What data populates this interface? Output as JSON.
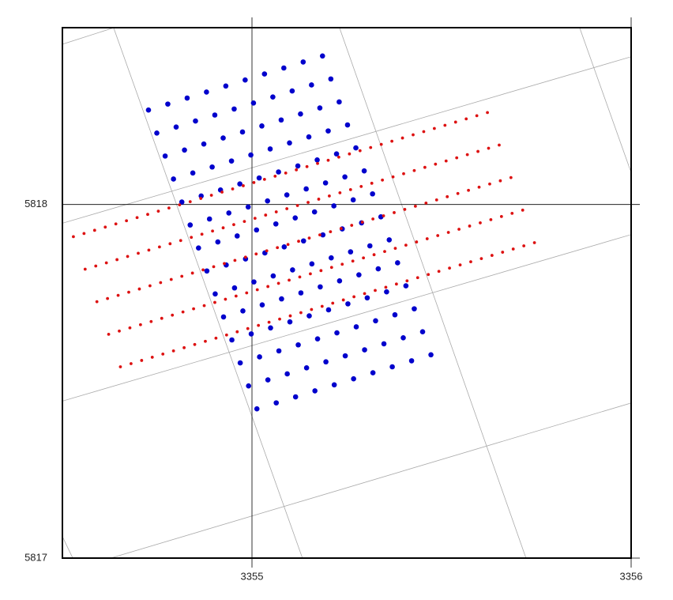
{
  "chart_data": {
    "type": "scatter",
    "xlim": [
      3354.5,
      3356
    ],
    "ylim": [
      5817,
      5818.5
    ],
    "xticks": [
      3355,
      3356
    ],
    "yticks": [
      5817,
      5818
    ],
    "grid": true,
    "series": [
      {
        "color": "#0000cc",
        "x": [
          3354.727,
          3354.778,
          3354.829,
          3354.88,
          3354.931,
          3354.982,
          3355.033,
          3355.084,
          3355.135,
          3355.186,
          3354.749,
          3354.8,
          3354.851,
          3354.902,
          3354.953,
          3355.004,
          3355.055,
          3355.106,
          3355.157,
          3355.208,
          3354.771,
          3354.822,
          3354.873,
          3354.924,
          3354.975,
          3355.026,
          3355.077,
          3355.128,
          3355.179,
          3355.23,
          3354.793,
          3354.844,
          3354.895,
          3354.946,
          3354.997,
          3355.048,
          3355.099,
          3355.15,
          3355.201,
          3355.252,
          3354.815,
          3354.866,
          3354.917,
          3354.968,
          3355.019,
          3355.07,
          3355.121,
          3355.172,
          3355.223,
          3355.274,
          3354.837,
          3354.888,
          3354.939,
          3354.99,
          3355.041,
          3355.092,
          3355.143,
          3355.194,
          3355.245,
          3355.296,
          3354.859,
          3354.91,
          3354.961,
          3355.012,
          3355.063,
          3355.114,
          3355.165,
          3355.216,
          3355.267,
          3355.318,
          3354.881,
          3354.932,
          3354.983,
          3355.034,
          3355.085,
          3355.136,
          3355.187,
          3355.238,
          3355.289,
          3355.34,
          3354.903,
          3354.954,
          3355.005,
          3355.056,
          3355.107,
          3355.158,
          3355.209,
          3355.26,
          3355.311,
          3355.362,
          3354.925,
          3354.976,
          3355.027,
          3355.078,
          3355.129,
          3355.18,
          3355.231,
          3355.282,
          3355.333,
          3355.384,
          3354.947,
          3354.998,
          3355.049,
          3355.1,
          3355.151,
          3355.202,
          3355.253,
          3355.304,
          3355.355,
          3355.406,
          3354.969,
          3355.02,
          3355.071,
          3355.122,
          3355.173,
          3355.224,
          3355.275,
          3355.326,
          3355.377,
          3355.428,
          3354.991,
          3355.042,
          3355.093,
          3355.144,
          3355.195,
          3355.246,
          3355.297,
          3355.348,
          3355.399,
          3355.45,
          3355.013,
          3355.064,
          3355.115,
          3355.166,
          3355.217,
          3355.268,
          3355.319,
          3355.37,
          3355.421,
          3355.472
        ],
        "y": [
          5818.267,
          5818.284,
          5818.301,
          5818.318,
          5818.335,
          5818.352,
          5818.369,
          5818.386,
          5818.403,
          5818.42,
          5818.202,
          5818.219,
          5818.236,
          5818.253,
          5818.27,
          5818.287,
          5818.304,
          5818.321,
          5818.338,
          5818.355,
          5818.137,
          5818.154,
          5818.171,
          5818.188,
          5818.205,
          5818.222,
          5818.239,
          5818.256,
          5818.273,
          5818.29,
          5818.072,
          5818.089,
          5818.106,
          5818.123,
          5818.14,
          5818.157,
          5818.174,
          5818.191,
          5818.208,
          5818.225,
          5818.007,
          5818.024,
          5818.041,
          5818.058,
          5818.075,
          5818.092,
          5818.109,
          5818.126,
          5818.143,
          5818.16,
          5817.942,
          5817.959,
          5817.976,
          5817.993,
          5818.01,
          5818.027,
          5818.044,
          5818.061,
          5818.078,
          5818.095,
          5817.877,
          5817.894,
          5817.911,
          5817.928,
          5817.945,
          5817.962,
          5817.979,
          5817.996,
          5818.013,
          5818.03,
          5817.812,
          5817.829,
          5817.846,
          5817.863,
          5817.88,
          5817.897,
          5817.914,
          5817.931,
          5817.948,
          5817.965,
          5817.747,
          5817.764,
          5817.781,
          5817.798,
          5817.815,
          5817.832,
          5817.849,
          5817.866,
          5817.883,
          5817.9,
          5817.682,
          5817.699,
          5817.716,
          5817.733,
          5817.75,
          5817.767,
          5817.784,
          5817.801,
          5817.818,
          5817.835,
          5817.617,
          5817.634,
          5817.651,
          5817.668,
          5817.685,
          5817.702,
          5817.719,
          5817.736,
          5817.753,
          5817.77,
          5817.552,
          5817.569,
          5817.586,
          5817.603,
          5817.62,
          5817.637,
          5817.654,
          5817.671,
          5817.688,
          5817.705,
          5817.487,
          5817.504,
          5817.521,
          5817.538,
          5817.555,
          5817.572,
          5817.589,
          5817.606,
          5817.623,
          5817.64,
          5817.422,
          5817.439,
          5817.456,
          5817.473,
          5817.49,
          5817.507,
          5817.524,
          5817.541,
          5817.558,
          5817.575
        ]
      },
      {
        "color": "#dd1111",
        "x": [
          3354.529,
          3354.557,
          3354.585,
          3354.613,
          3354.641,
          3354.669,
          3354.697,
          3354.725,
          3354.753,
          3354.781,
          3354.809,
          3354.837,
          3354.865,
          3354.893,
          3354.921,
          3354.949,
          3354.977,
          3355.005,
          3355.033,
          3355.061,
          3355.089,
          3355.117,
          3355.145,
          3355.173,
          3355.201,
          3355.229,
          3355.257,
          3355.285,
          3355.313,
          3355.341,
          3355.369,
          3355.397,
          3355.425,
          3355.453,
          3355.481,
          3355.509,
          3355.537,
          3355.565,
          3355.593,
          3355.621,
          3354.56,
          3354.588,
          3354.616,
          3354.644,
          3354.672,
          3354.7,
          3354.728,
          3354.756,
          3354.784,
          3354.812,
          3354.84,
          3354.868,
          3354.896,
          3354.924,
          3354.952,
          3354.98,
          3355.008,
          3355.036,
          3355.064,
          3355.092,
          3355.12,
          3355.148,
          3355.176,
          3355.204,
          3355.232,
          3355.26,
          3355.288,
          3355.316,
          3355.344,
          3355.372,
          3355.4,
          3355.428,
          3355.456,
          3355.484,
          3355.512,
          3355.54,
          3355.568,
          3355.596,
          3355.624,
          3355.652,
          3354.591,
          3354.619,
          3354.647,
          3354.675,
          3354.703,
          3354.731,
          3354.759,
          3354.787,
          3354.815,
          3354.843,
          3354.871,
          3354.899,
          3354.927,
          3354.955,
          3354.983,
          3355.011,
          3355.039,
          3355.067,
          3355.095,
          3355.123,
          3355.151,
          3355.179,
          3355.207,
          3355.235,
          3355.263,
          3355.291,
          3355.319,
          3355.347,
          3355.375,
          3355.403,
          3355.431,
          3355.459,
          3355.487,
          3355.515,
          3355.543,
          3355.571,
          3355.599,
          3355.627,
          3355.655,
          3355.683,
          3354.622,
          3354.65,
          3354.678,
          3354.706,
          3354.734,
          3354.762,
          3354.79,
          3354.818,
          3354.846,
          3354.874,
          3354.902,
          3354.93,
          3354.958,
          3354.986,
          3355.014,
          3355.042,
          3355.07,
          3355.098,
          3355.126,
          3355.154,
          3355.182,
          3355.21,
          3355.238,
          3355.266,
          3355.294,
          3355.322,
          3355.35,
          3355.378,
          3355.406,
          3355.434,
          3355.462,
          3355.49,
          3355.518,
          3355.546,
          3355.574,
          3355.602,
          3355.63,
          3355.658,
          3355.686,
          3355.714,
          3354.653,
          3354.681,
          3354.709,
          3354.737,
          3354.765,
          3354.793,
          3354.821,
          3354.849,
          3354.877,
          3354.905,
          3354.933,
          3354.961,
          3354.989,
          3355.017,
          3355.045,
          3355.073,
          3355.101,
          3355.129,
          3355.157,
          3355.185,
          3355.213,
          3355.241,
          3355.269,
          3355.297,
          3355.325,
          3355.353,
          3355.381,
          3355.409,
          3355.437,
          3355.465,
          3355.493,
          3355.521,
          3355.549,
          3355.577,
          3355.605,
          3355.633,
          3355.661,
          3355.689,
          3355.717,
          3355.745
        ],
        "y": [
          5817.909,
          5817.918,
          5817.927,
          5817.936,
          5817.945,
          5817.954,
          5817.963,
          5817.972,
          5817.981,
          5817.99,
          5817.999,
          5818.008,
          5818.017,
          5818.026,
          5818.035,
          5818.044,
          5818.053,
          5818.062,
          5818.071,
          5818.08,
          5818.089,
          5818.098,
          5818.107,
          5818.116,
          5818.125,
          5818.134,
          5818.143,
          5818.152,
          5818.161,
          5818.17,
          5818.179,
          5818.188,
          5818.197,
          5818.206,
          5818.215,
          5818.224,
          5818.233,
          5818.242,
          5818.251,
          5818.26,
          5817.817,
          5817.826,
          5817.835,
          5817.844,
          5817.853,
          5817.862,
          5817.871,
          5817.88,
          5817.889,
          5817.898,
          5817.907,
          5817.916,
          5817.925,
          5817.934,
          5817.943,
          5817.952,
          5817.961,
          5817.97,
          5817.979,
          5817.988,
          5817.997,
          5818.006,
          5818.015,
          5818.024,
          5818.033,
          5818.042,
          5818.051,
          5818.06,
          5818.069,
          5818.078,
          5818.087,
          5818.096,
          5818.105,
          5818.114,
          5818.123,
          5818.132,
          5818.141,
          5818.15,
          5818.159,
          5818.168,
          5817.725,
          5817.734,
          5817.743,
          5817.752,
          5817.761,
          5817.77,
          5817.779,
          5817.788,
          5817.797,
          5817.806,
          5817.815,
          5817.824,
          5817.833,
          5817.842,
          5817.851,
          5817.86,
          5817.869,
          5817.878,
          5817.887,
          5817.896,
          5817.905,
          5817.914,
          5817.923,
          5817.932,
          5817.941,
          5817.95,
          5817.959,
          5817.968,
          5817.977,
          5817.986,
          5817.995,
          5818.004,
          5818.013,
          5818.022,
          5818.031,
          5818.04,
          5818.049,
          5818.058,
          5818.067,
          5818.076,
          5817.633,
          5817.642,
          5817.651,
          5817.66,
          5817.669,
          5817.678,
          5817.687,
          5817.696,
          5817.705,
          5817.714,
          5817.723,
          5817.732,
          5817.741,
          5817.75,
          5817.759,
          5817.768,
          5817.777,
          5817.786,
          5817.795,
          5817.804,
          5817.813,
          5817.822,
          5817.831,
          5817.84,
          5817.849,
          5817.858,
          5817.867,
          5817.876,
          5817.885,
          5817.894,
          5817.903,
          5817.912,
          5817.921,
          5817.93,
          5817.939,
          5817.948,
          5817.957,
          5817.966,
          5817.975,
          5817.984,
          5817.541,
          5817.55,
          5817.559,
          5817.568,
          5817.577,
          5817.586,
          5817.595,
          5817.604,
          5817.613,
          5817.622,
          5817.631,
          5817.64,
          5817.649,
          5817.658,
          5817.667,
          5817.676,
          5817.685,
          5817.694,
          5817.703,
          5817.712,
          5817.721,
          5817.73,
          5817.739,
          5817.748,
          5817.757,
          5817.766,
          5817.775,
          5817.784,
          5817.793,
          5817.802,
          5817.811,
          5817.82,
          5817.829,
          5817.838,
          5817.847,
          5817.856,
          5817.865,
          5817.874,
          5817.883,
          5817.892
        ]
      }
    ]
  }
}
